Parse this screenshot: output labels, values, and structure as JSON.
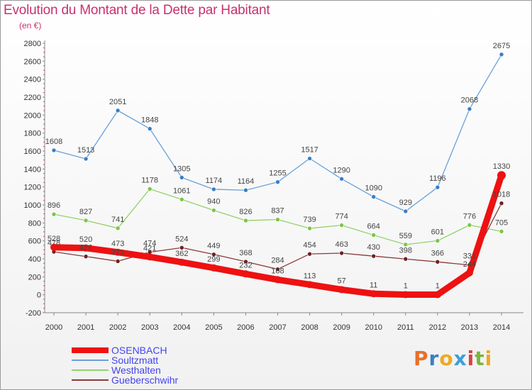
{
  "title": "Evolution du Montant de la Dette par Habitant",
  "subtitle": "(en €)",
  "logo": {
    "text": "Proxiti",
    "colors": [
      "#e8702a",
      "#3a7fc4",
      "#f0a91e",
      "#3aa0d8",
      "#e04040",
      "#7ab640",
      "#f0a91e"
    ]
  },
  "chart_data": {
    "type": "line",
    "x": [
      "2000",
      "2001",
      "2002",
      "2003",
      "2004",
      "2005",
      "2006",
      "2007",
      "2008",
      "2009",
      "2010",
      "2011",
      "2012",
      "2013",
      "2014"
    ],
    "ylim": [
      -200,
      2800
    ],
    "yticks": [
      "-200",
      "0",
      "200",
      "400",
      "600",
      "800",
      "1000",
      "1200",
      "1400",
      "1600",
      "1800",
      "2000",
      "2200",
      "2400",
      "2600",
      "2800"
    ],
    "grid": false,
    "legend_position": "bottom-left",
    "series": [
      {
        "name": "Soultzmatt",
        "color": "#6aa0d8",
        "point_color": "#3a7ec6",
        "values": [
          1608,
          1513,
          2051,
          1848,
          1305,
          1174,
          1164,
          1255,
          1517,
          1290,
          1090,
          929,
          1196,
          2068,
          2675
        ],
        "labels": [
          "1608",
          "1513",
          "2051",
          "1848",
          "1305",
          "1174",
          "1164",
          "1255",
          "1517",
          "1290",
          "1090",
          "929",
          "1196",
          "2068",
          "2675"
        ]
      },
      {
        "name": "Westhalten",
        "color": "#92d36a",
        "point_color": "#7cc44a",
        "values": [
          896,
          827,
          741,
          1178,
          1061,
          940,
          826,
          837,
          739,
          774,
          664,
          559,
          601,
          776,
          705
        ],
        "labels": [
          "896",
          "827",
          "741",
          "1178",
          "1061",
          "940",
          "826",
          "837",
          "739",
          "774",
          "664",
          "559",
          "601",
          "776",
          "705"
        ]
      },
      {
        "name": "Gueberschwihr",
        "color": "#8a3a3a",
        "point_color": "#6e2020",
        "values": [
          478,
          426,
          373,
          474,
          524,
          449,
          368,
          284,
          454,
          463,
          430,
          398,
          366,
          331,
          1018
        ],
        "labels": [
          "478",
          "426",
          "373",
          "474",
          "524",
          "449",
          "368",
          "284",
          "454",
          "463",
          "430",
          "398",
          "366",
          "331",
          "1018"
        ]
      },
      {
        "name": "OSENBACH",
        "color": "#ee1111",
        "point_color": "#ee1111",
        "values": [
          528,
          520,
          473,
          421,
          362,
          299,
          232,
          168,
          113,
          57,
          11,
          1,
          1,
          244,
          1330
        ],
        "labels": [
          "528",
          "520",
          "473",
          "421",
          "362",
          "299",
          "232",
          "168",
          "113",
          "57",
          "11",
          "1",
          "1",
          "244",
          "1330"
        ]
      }
    ]
  }
}
